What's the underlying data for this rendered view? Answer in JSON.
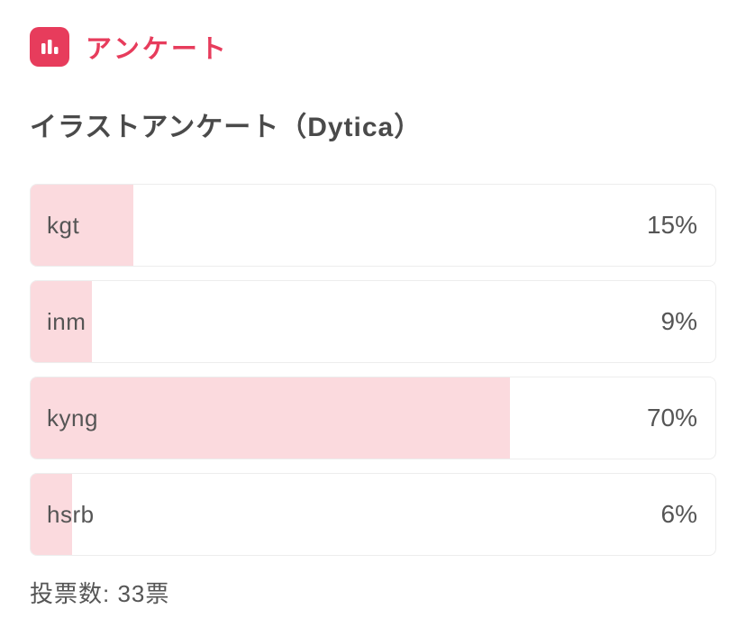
{
  "header": {
    "label": "アンケート",
    "icon": "bar-chart-icon"
  },
  "poll": {
    "title": "イラストアンケート（Dytica）",
    "options": [
      {
        "label": "kgt",
        "percent": 15,
        "percent_label": "15%"
      },
      {
        "label": "inm",
        "percent": 9,
        "percent_label": "9%"
      },
      {
        "label": "kyng",
        "percent": 70,
        "percent_label": "70%"
      },
      {
        "label": "hsrb",
        "percent": 6,
        "percent_label": "6%"
      }
    ]
  },
  "footer": {
    "vote_count_text": "投票数: 33票"
  },
  "colors": {
    "accent": "#e73c5c",
    "bar_fill": "#fbdade",
    "title_text": "#4a4a4a",
    "body_text": "#555555",
    "row_border": "#ededed",
    "background": "#ffffff"
  },
  "chart_data": {
    "type": "bar",
    "orientation": "horizontal",
    "title": "イラストアンケート（Dytica）",
    "categories": [
      "kgt",
      "inm",
      "kyng",
      "hsrb"
    ],
    "values": [
      15,
      9,
      70,
      6
    ],
    "unit": "%",
    "value_range": [
      0,
      100
    ],
    "data_labels": [
      "15%",
      "9%",
      "70%",
      "6%"
    ],
    "annotation": "投票数: 33票"
  }
}
